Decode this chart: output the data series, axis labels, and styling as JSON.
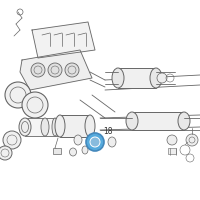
{
  "bg_color": "#ffffff",
  "line_color": "#666666",
  "highlight_color": "#4488bb",
  "highlight_fill": "#55aadd",
  "label_18_text": "18",
  "label_fontsize": 5.5
}
